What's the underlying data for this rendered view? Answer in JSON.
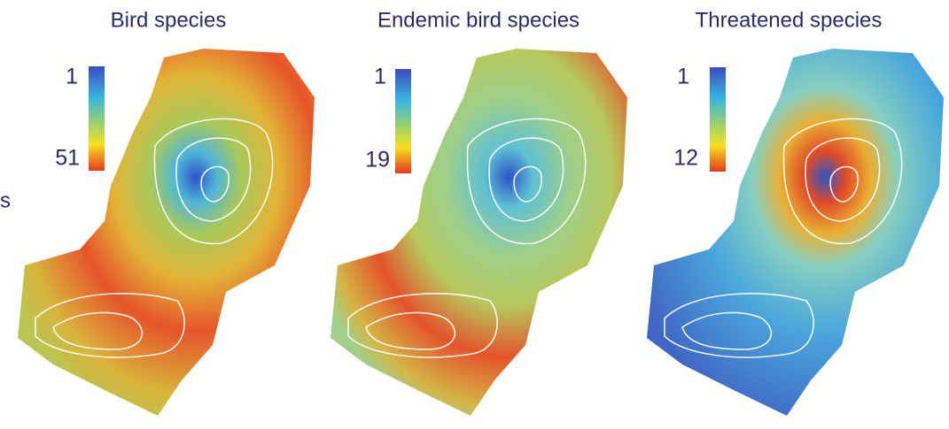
{
  "fragment": "s",
  "panels": [
    {
      "title": "Bird species",
      "legend": {
        "min": 1,
        "max": 51
      }
    },
    {
      "title": "Endemic bird species",
      "legend": {
        "min": 1,
        "max": 19
      }
    },
    {
      "title": "Threatened species",
      "legend": {
        "min": 1,
        "max": 12
      }
    }
  ]
}
